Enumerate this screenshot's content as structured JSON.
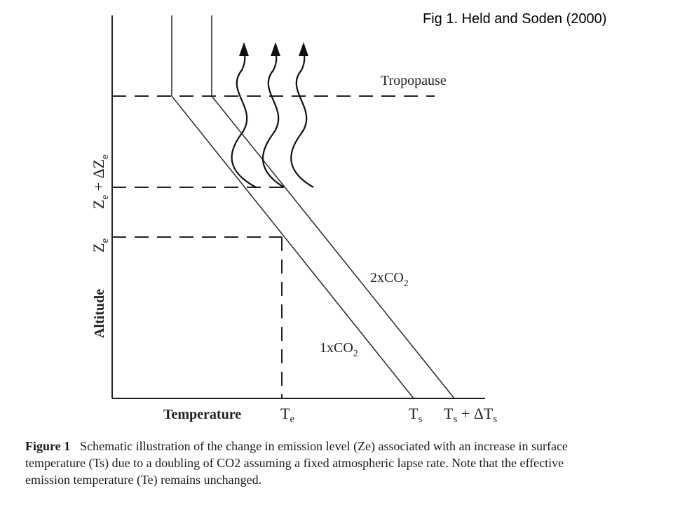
{
  "header": {
    "title": "Fig 1. Held and Soden (2000)"
  },
  "diagram": {
    "tropopause_label": "Tropopause",
    "y_axis_label": "Altitude",
    "y_level_ze": "Z",
    "y_level_ze_sub": "e",
    "y_level_ze_dz": "Z",
    "y_level_ze_dz_sub": "e",
    "y_level_ze_dz_op": " + ΔZ",
    "y_level_ze_dz_op_sub": "e",
    "x_axis_label": "Temperature",
    "x_tick_te": "T",
    "x_tick_te_sub": "e",
    "x_tick_ts": "T",
    "x_tick_ts_sub": "s",
    "x_tick_ts_dts": "T",
    "x_tick_ts_dts_sub": "s",
    "x_tick_ts_dts_op": " + ΔT",
    "x_tick_ts_dts_op_sub": "s",
    "line_1xco2": "1xCO",
    "line_1xco2_sub": "2",
    "line_2xco2": "2xCO",
    "line_2xco2_sub": "2"
  },
  "caption": {
    "label": "Figure 1",
    "text": "Schematic illustration of the change in emission level (Ze) associated with an increase in surface temperature (Ts) due to a doubling of CO2 assuming a fixed atmospheric lapse rate. Note that the effective emission temperature (Te) remains unchanged."
  }
}
